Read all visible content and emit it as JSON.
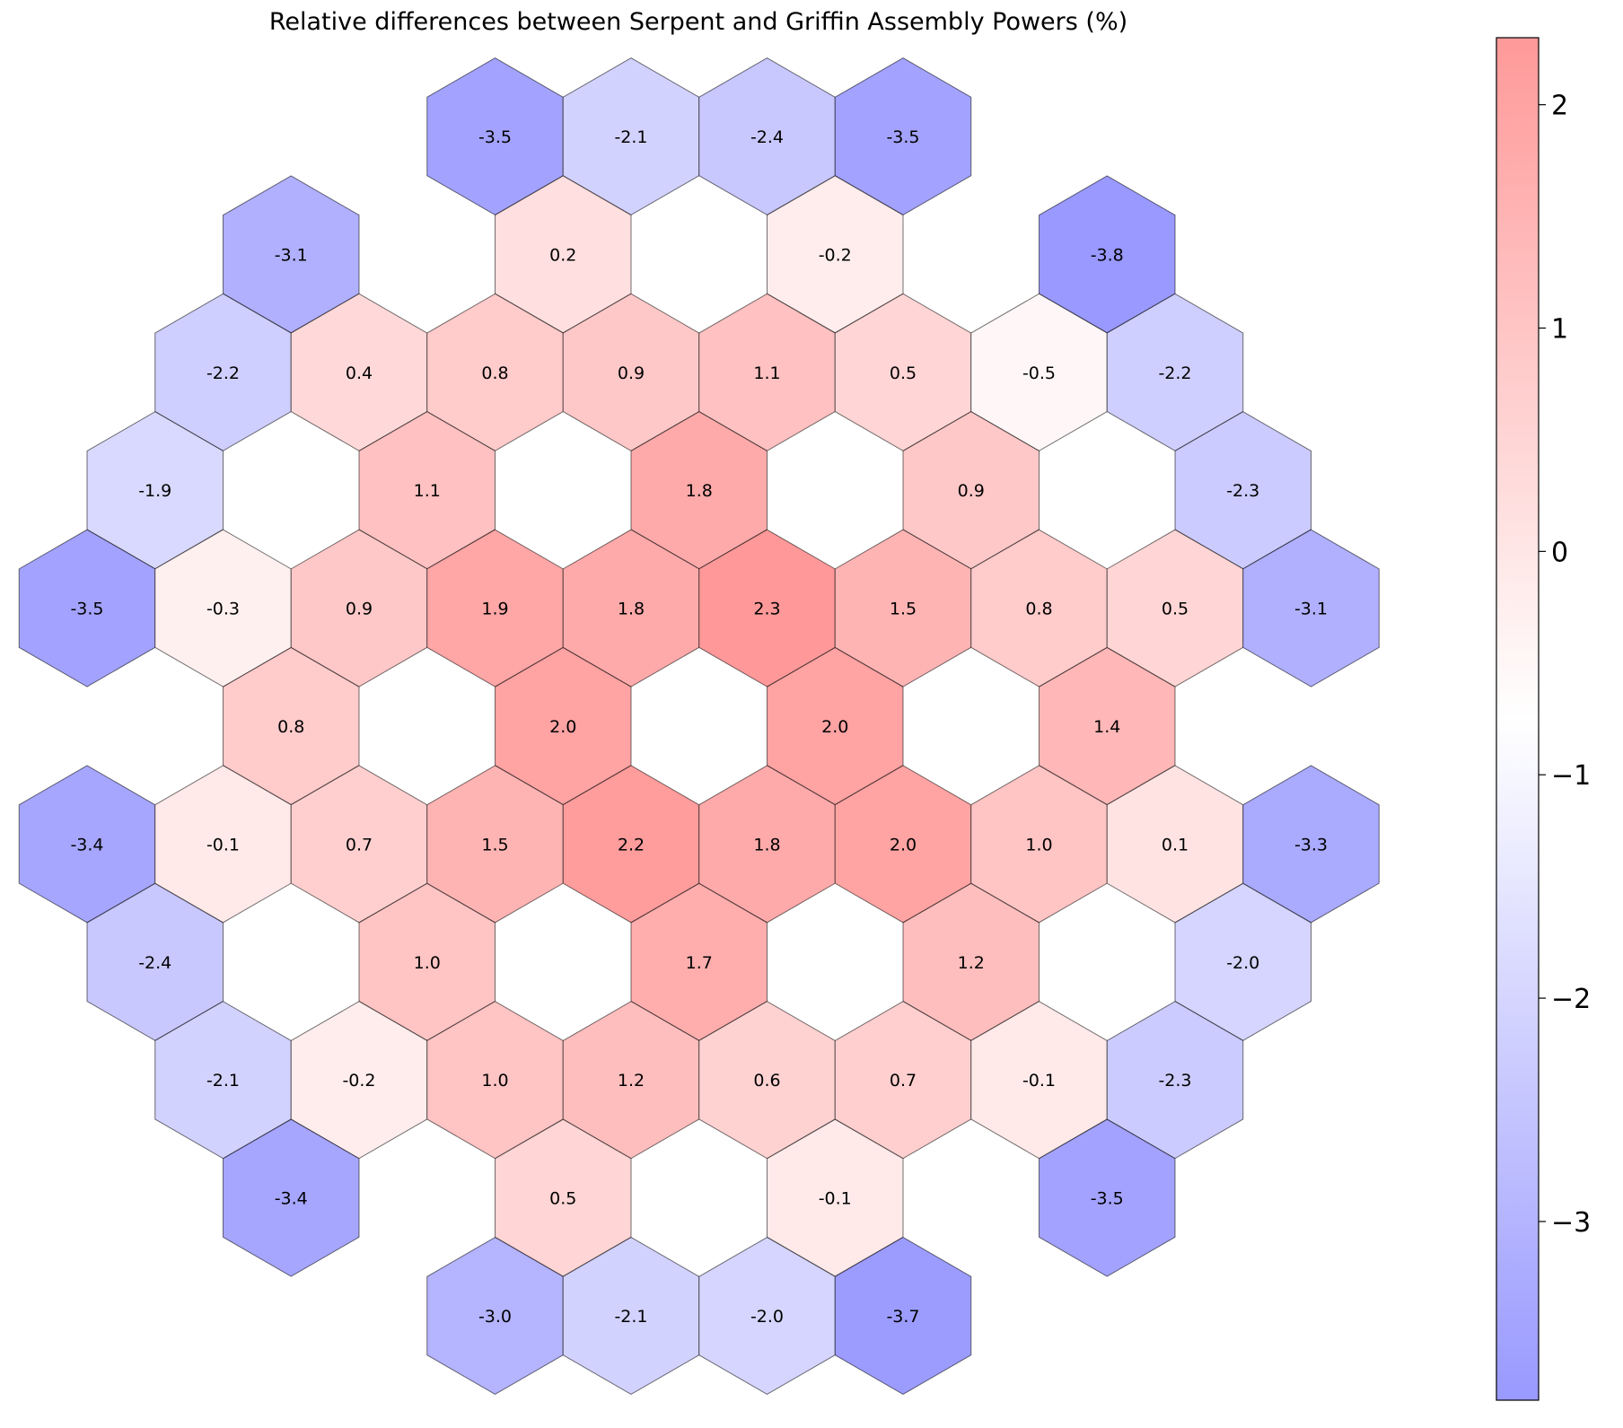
{
  "chart_data": {
    "type": "heatmap",
    "title": "Relative differences between Serpent and Griffin Assembly Powers (%)",
    "colorbar": {
      "range": [
        -3.8,
        2.3
      ],
      "ticks": [
        -3,
        -2,
        -1,
        0,
        1,
        2
      ],
      "tick_labels": [
        "−3",
        "−2",
        "−1",
        "0",
        "1",
        "2"
      ],
      "colors": {
        "low": "#0000ff",
        "mid": "#ffffff",
        "high": "#ff0000"
      },
      "alpha": 0.4
    },
    "cells": [
      {
        "row": 0,
        "col": 3.0,
        "value": -3.5,
        "label": "-3.5"
      },
      {
        "row": 0,
        "col": 4.0,
        "value": -2.1,
        "label": "-2.1"
      },
      {
        "row": 0,
        "col": 5.0,
        "value": -2.4,
        "label": "-2.4"
      },
      {
        "row": 0,
        "col": 6.0,
        "value": -3.5,
        "label": "-3.5"
      },
      {
        "row": 1,
        "col": 1.5,
        "value": -3.1,
        "label": "-3.1"
      },
      {
        "row": 1,
        "col": 3.5,
        "value": 0.2,
        "label": "0.2"
      },
      {
        "row": 1,
        "col": 5.5,
        "value": -0.2,
        "label": "-0.2"
      },
      {
        "row": 1,
        "col": 7.5,
        "value": -3.8,
        "label": "-3.8"
      },
      {
        "row": 2,
        "col": 1.0,
        "value": -2.2,
        "label": "-2.2"
      },
      {
        "row": 2,
        "col": 2.0,
        "value": 0.4,
        "label": "0.4"
      },
      {
        "row": 2,
        "col": 3.0,
        "value": 0.8,
        "label": "0.8"
      },
      {
        "row": 2,
        "col": 4.0,
        "value": 0.9,
        "label": "0.9"
      },
      {
        "row": 2,
        "col": 5.0,
        "value": 1.1,
        "label": "1.1"
      },
      {
        "row": 2,
        "col": 6.0,
        "value": 0.5,
        "label": "0.5"
      },
      {
        "row": 2,
        "col": 7.0,
        "value": -0.5,
        "label": "-0.5"
      },
      {
        "row": 2,
        "col": 8.0,
        "value": -2.2,
        "label": "-2.2"
      },
      {
        "row": 3,
        "col": 0.5,
        "value": -1.9,
        "label": "-1.9"
      },
      {
        "row": 3,
        "col": 2.5,
        "value": 1.1,
        "label": "1.1"
      },
      {
        "row": 3,
        "col": 4.5,
        "value": 1.8,
        "label": "1.8"
      },
      {
        "row": 3,
        "col": 6.5,
        "value": 0.9,
        "label": "0.9"
      },
      {
        "row": 3,
        "col": 8.5,
        "value": -2.3,
        "label": "-2.3"
      },
      {
        "row": 4,
        "col": 0.0,
        "value": -3.5,
        "label": "-3.5"
      },
      {
        "row": 4,
        "col": 1.0,
        "value": -0.3,
        "label": "-0.3"
      },
      {
        "row": 4,
        "col": 2.0,
        "value": 0.9,
        "label": "0.9"
      },
      {
        "row": 4,
        "col": 3.0,
        "value": 1.9,
        "label": "1.9"
      },
      {
        "row": 4,
        "col": 4.0,
        "value": 1.8,
        "label": "1.8"
      },
      {
        "row": 4,
        "col": 5.0,
        "value": 2.3,
        "label": "2.3"
      },
      {
        "row": 4,
        "col": 6.0,
        "value": 1.5,
        "label": "1.5"
      },
      {
        "row": 4,
        "col": 7.0,
        "value": 0.8,
        "label": "0.8"
      },
      {
        "row": 4,
        "col": 8.0,
        "value": 0.5,
        "label": "0.5"
      },
      {
        "row": 4,
        "col": 9.0,
        "value": -3.1,
        "label": "-3.1"
      },
      {
        "row": 5,
        "col": 1.5,
        "value": 0.8,
        "label": "0.8"
      },
      {
        "row": 5,
        "col": 3.5,
        "value": 2.0,
        "label": "2.0"
      },
      {
        "row": 5,
        "col": 5.5,
        "value": 2.0,
        "label": "2.0"
      },
      {
        "row": 5,
        "col": 7.5,
        "value": 1.4,
        "label": "1.4"
      },
      {
        "row": 6,
        "col": 0.0,
        "value": -3.4,
        "label": "-3.4"
      },
      {
        "row": 6,
        "col": 1.0,
        "value": -0.1,
        "label": "-0.1"
      },
      {
        "row": 6,
        "col": 2.0,
        "value": 0.7,
        "label": "0.7"
      },
      {
        "row": 6,
        "col": 3.0,
        "value": 1.5,
        "label": "1.5"
      },
      {
        "row": 6,
        "col": 4.0,
        "value": 2.2,
        "label": "2.2"
      },
      {
        "row": 6,
        "col": 5.0,
        "value": 1.8,
        "label": "1.8"
      },
      {
        "row": 6,
        "col": 6.0,
        "value": 2.0,
        "label": "2.0"
      },
      {
        "row": 6,
        "col": 7.0,
        "value": 1.0,
        "label": "1.0"
      },
      {
        "row": 6,
        "col": 8.0,
        "value": 0.1,
        "label": "0.1"
      },
      {
        "row": 6,
        "col": 9.0,
        "value": -3.3,
        "label": "-3.3"
      },
      {
        "row": 7,
        "col": 0.5,
        "value": -2.4,
        "label": "-2.4"
      },
      {
        "row": 7,
        "col": 2.5,
        "value": 1.0,
        "label": "1.0"
      },
      {
        "row": 7,
        "col": 4.5,
        "value": 1.7,
        "label": "1.7"
      },
      {
        "row": 7,
        "col": 6.5,
        "value": 1.2,
        "label": "1.2"
      },
      {
        "row": 7,
        "col": 8.5,
        "value": -2.0,
        "label": "-2.0"
      },
      {
        "row": 8,
        "col": 1.0,
        "value": -2.1,
        "label": "-2.1"
      },
      {
        "row": 8,
        "col": 2.0,
        "value": -0.2,
        "label": "-0.2"
      },
      {
        "row": 8,
        "col": 3.0,
        "value": 1.0,
        "label": "1.0"
      },
      {
        "row": 8,
        "col": 4.0,
        "value": 1.2,
        "label": "1.2"
      },
      {
        "row": 8,
        "col": 5.0,
        "value": 0.6,
        "label": "0.6"
      },
      {
        "row": 8,
        "col": 6.0,
        "value": 0.7,
        "label": "0.7"
      },
      {
        "row": 8,
        "col": 7.0,
        "value": -0.1,
        "label": "-0.1"
      },
      {
        "row": 8,
        "col": 8.0,
        "value": -2.3,
        "label": "-2.3"
      },
      {
        "row": 9,
        "col": 1.5,
        "value": -3.4,
        "label": "-3.4"
      },
      {
        "row": 9,
        "col": 3.5,
        "value": 0.5,
        "label": "0.5"
      },
      {
        "row": 9,
        "col": 5.5,
        "value": -0.1,
        "label": "-0.1"
      },
      {
        "row": 9,
        "col": 7.5,
        "value": -3.5,
        "label": "-3.5"
      },
      {
        "row": 10,
        "col": 3.0,
        "value": -3.0,
        "label": "-3.0"
      },
      {
        "row": 10,
        "col": 4.0,
        "value": -2.1,
        "label": "-2.1"
      },
      {
        "row": 10,
        "col": 5.0,
        "value": -2.0,
        "label": "-2.0"
      },
      {
        "row": 10,
        "col": 6.0,
        "value": -3.7,
        "label": "-3.7"
      }
    ]
  }
}
